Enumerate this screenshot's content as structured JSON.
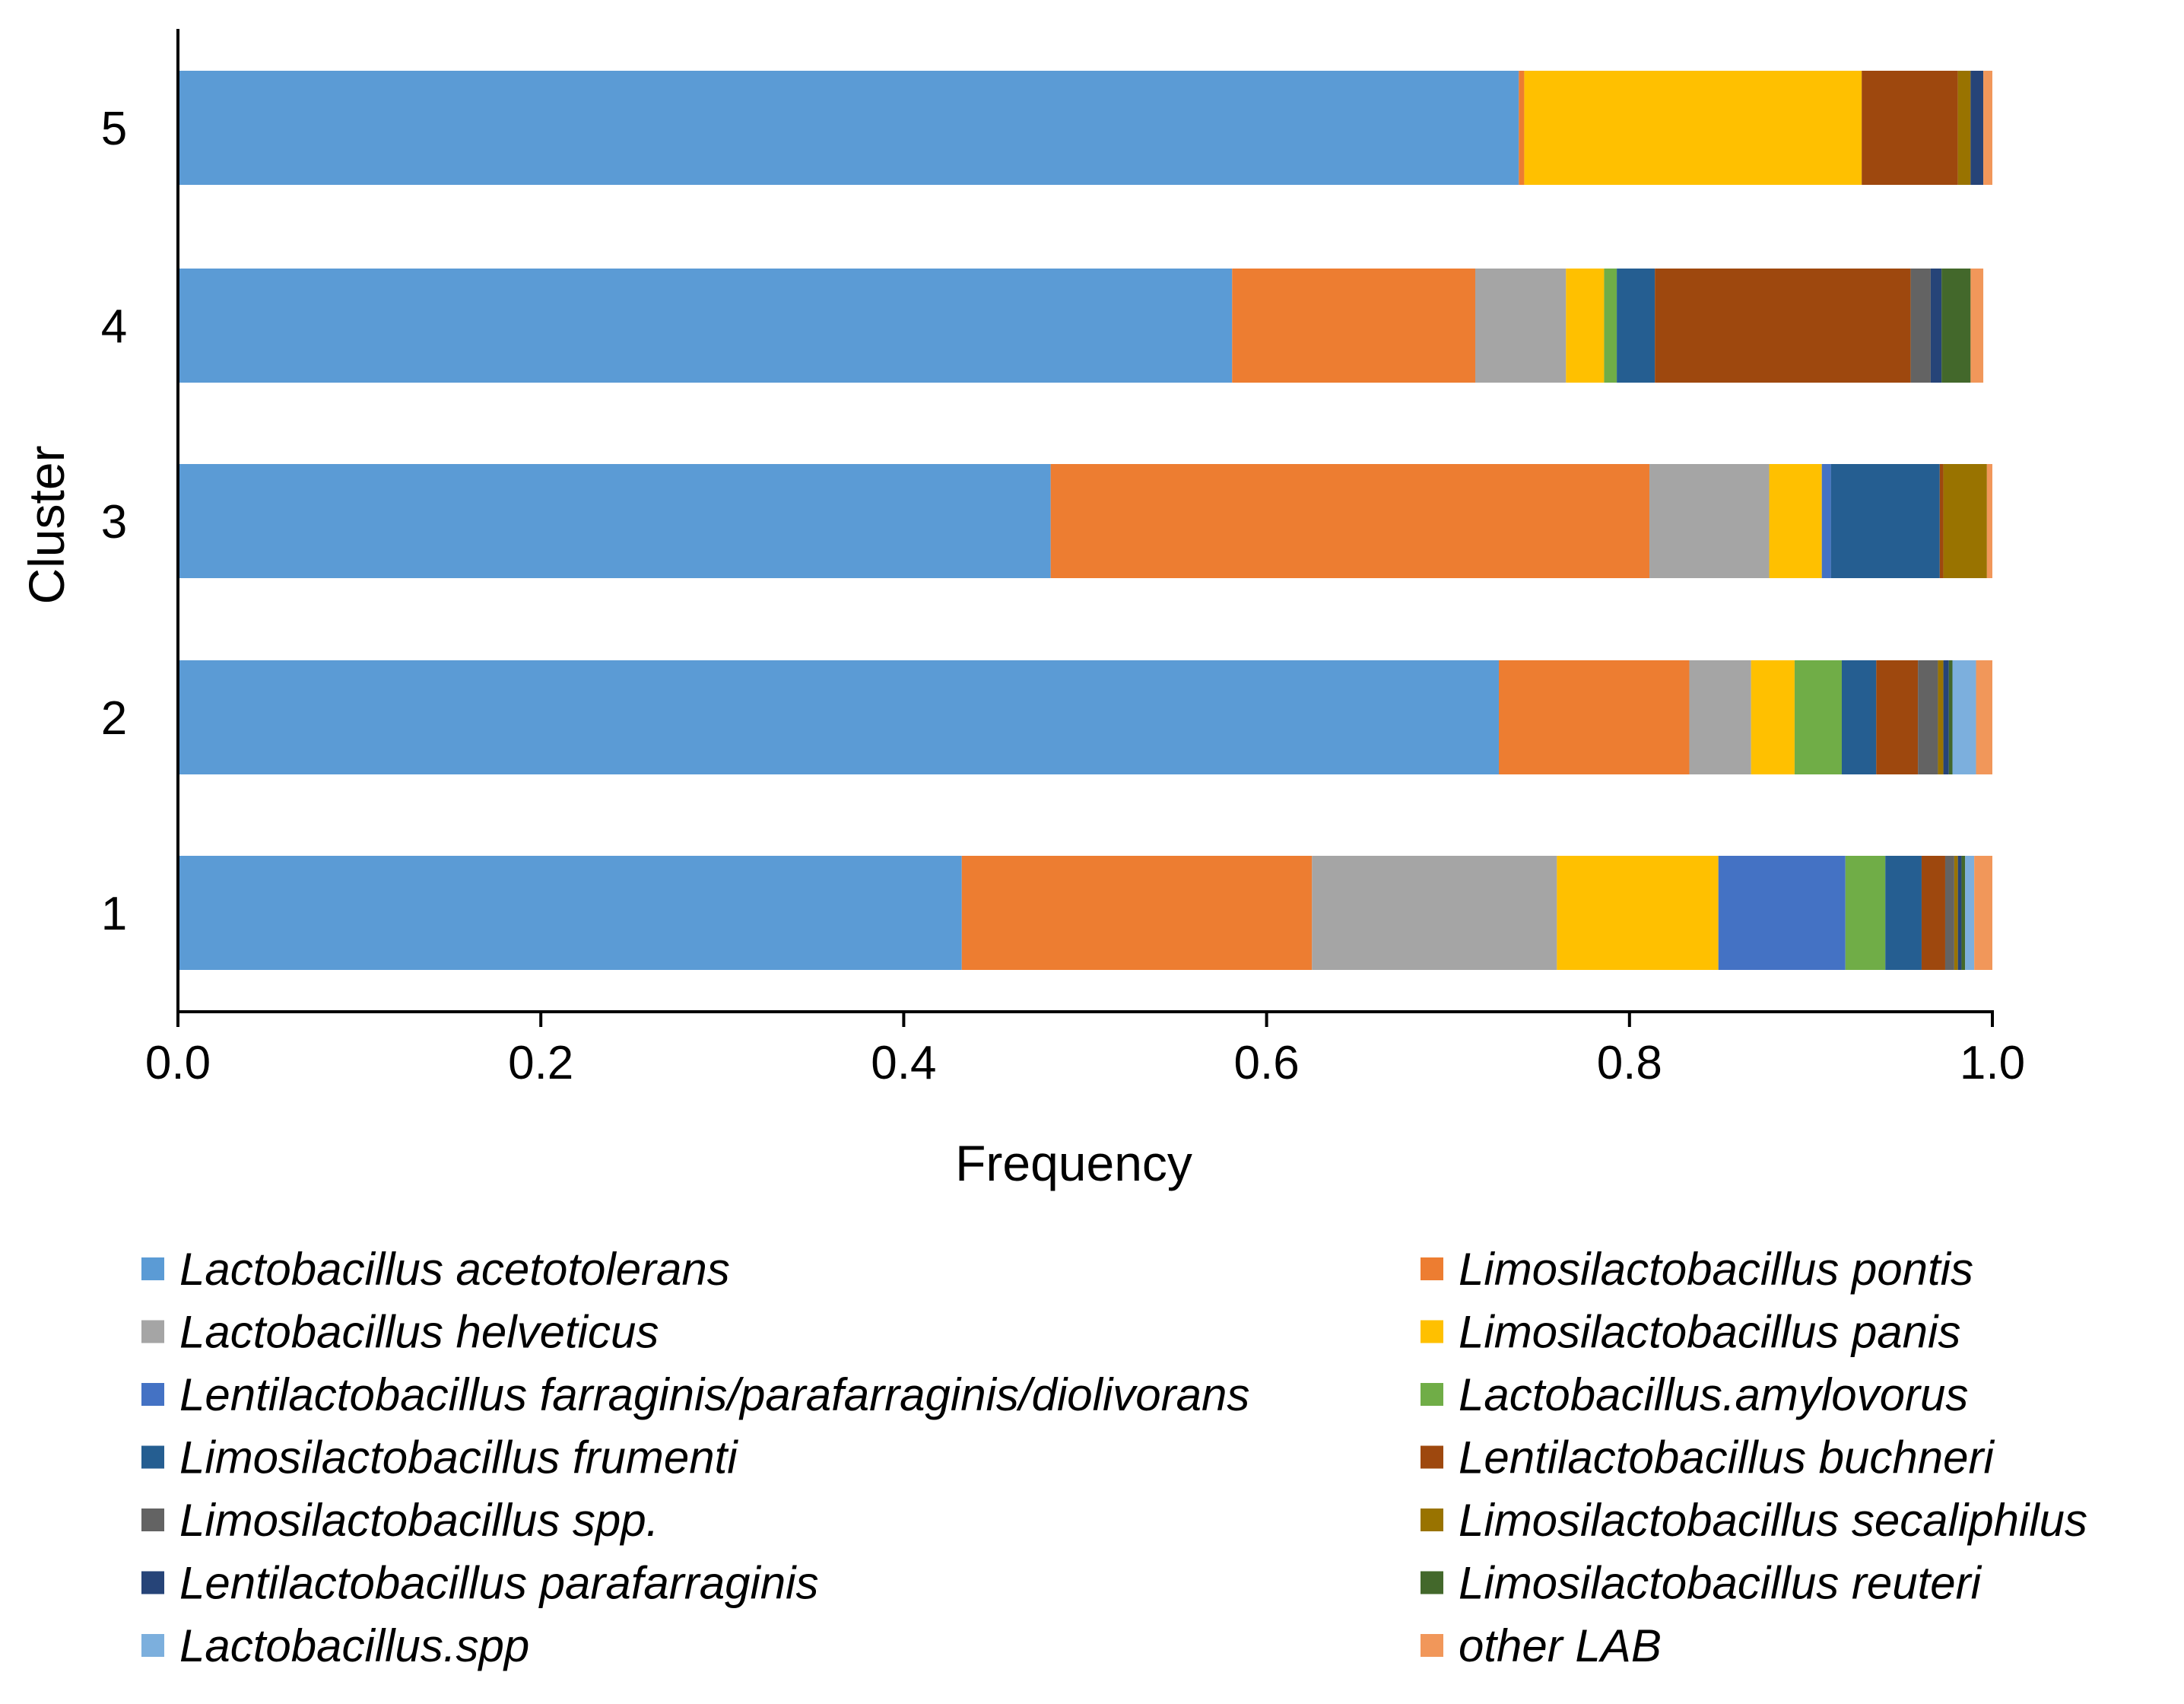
{
  "chart_data": {
    "type": "bar",
    "orientation": "horizontal",
    "stacked": true,
    "xlabel": "Frequency",
    "ylabel": "Cluster",
    "xlim": [
      0,
      1
    ],
    "x_ticks": [
      "0.0",
      "0.2",
      "0.4",
      "0.6",
      "0.8",
      "1.0"
    ],
    "categories": [
      "1",
      "2",
      "3",
      "4",
      "5"
    ],
    "grid": false,
    "legend_position": "bottom",
    "series": [
      {
        "name": "Lactobacillus acetotolerans",
        "color": "#5B9BD5",
        "values": [
          0.432,
          0.728,
          0.481,
          0.581,
          0.739
        ]
      },
      {
        "name": "Limosilactobacillus pontis",
        "color": "#ED7D31",
        "values": [
          0.193,
          0.105,
          0.33,
          0.134,
          0.003
        ]
      },
      {
        "name": "Lactobacillus helveticus",
        "color": "#A5A5A5",
        "values": [
          0.135,
          0.034,
          0.066,
          0.05,
          0.0
        ]
      },
      {
        "name": "Limosilactobacillus panis",
        "color": "#FFC000",
        "values": [
          0.089,
          0.024,
          0.029,
          0.021,
          0.186
        ]
      },
      {
        "name": "Lentilactobacillus farraginis/parafarraginis/diolivorans",
        "color": "#4472C4",
        "values": [
          0.07,
          0.0,
          0.005,
          0.0,
          0.0
        ]
      },
      {
        "name": "Lactobacillus.amylovorus",
        "color": "#70AD47",
        "values": [
          0.022,
          0.026,
          0.0,
          0.007,
          0.0
        ]
      },
      {
        "name": "Limosilactobacillus frumenti",
        "color": "#255E91",
        "values": [
          0.02,
          0.019,
          0.06,
          0.021,
          0.0
        ]
      },
      {
        "name": "Lentilactobacillus buchneri",
        "color": "#9E480E",
        "values": [
          0.013,
          0.023,
          0.002,
          0.141,
          0.053
        ]
      },
      {
        "name": "Limosilactobacillus spp.",
        "color": "#636363",
        "values": [
          0.005,
          0.011,
          0.0,
          0.011,
          0.0
        ]
      },
      {
        "name": "Limosilactobacillus secaliphilus",
        "color": "#997300",
        "values": [
          0.002,
          0.003,
          0.024,
          0.0,
          0.007
        ]
      },
      {
        "name": "Lentilactobacillus parafarraginis",
        "color": "#264478",
        "values": [
          0.002,
          0.003,
          0.0,
          0.006,
          0.007
        ]
      },
      {
        "name": "Limosilactobacillus reuteri",
        "color": "#43682B",
        "values": [
          0.002,
          0.002,
          0.0,
          0.016,
          0.0
        ]
      },
      {
        "name": "Lactobacillus.spp",
        "color": "#7CAFDD",
        "values": [
          0.005,
          0.013,
          0.0,
          0.0,
          0.0
        ]
      },
      {
        "name": "other LAB",
        "color": "#F1975A",
        "values": [
          0.01,
          0.009,
          0.003,
          0.007,
          0.005
        ]
      }
    ]
  }
}
